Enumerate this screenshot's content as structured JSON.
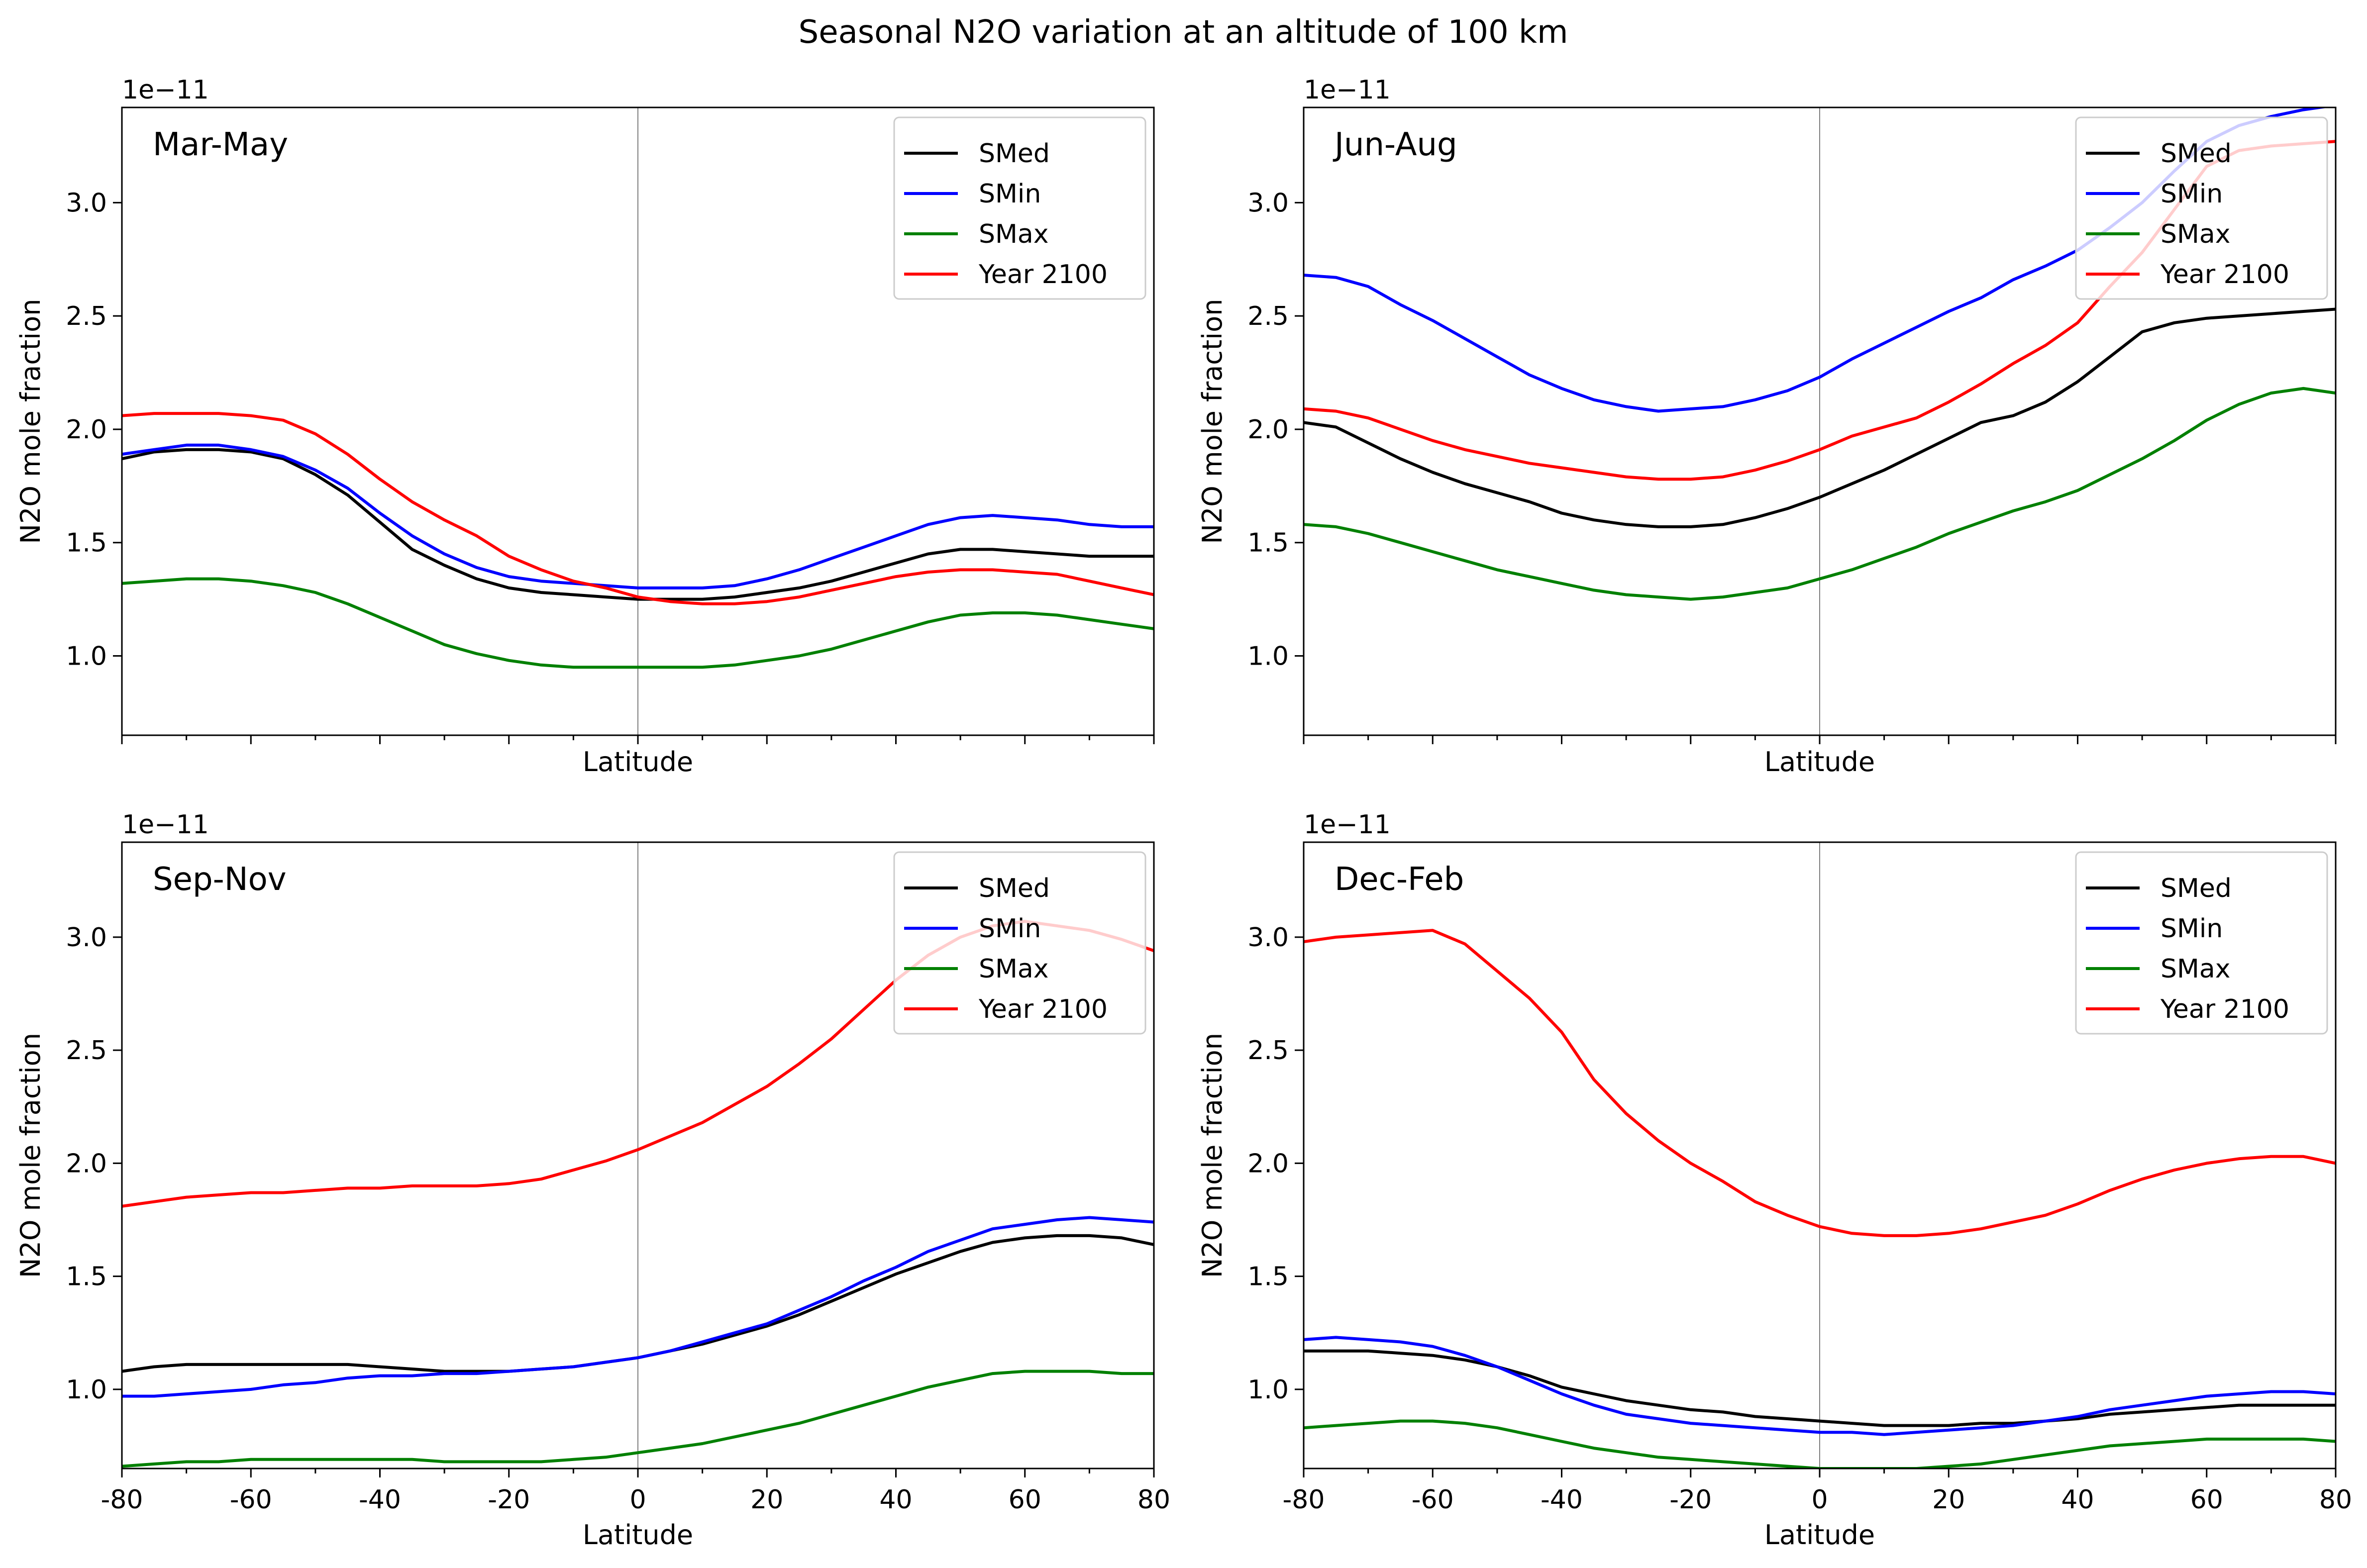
{
  "figure": {
    "title": "Seasonal N2O variation at an altitude of 100 km"
  },
  "chart_data": [
    {
      "type": "line",
      "panel_label": "Mar-May",
      "xlabel": "Latitude",
      "ylabel": "N2O mole fraction",
      "y_offset_label": "1e−11",
      "xlim": [
        -80,
        80
      ],
      "ylim": [
        0.65,
        3.42
      ],
      "xticks": [
        -80,
        -60,
        -40,
        -20,
        0,
        20,
        40,
        60,
        80
      ],
      "yticks": [
        "1.0",
        "1.5",
        "2.0",
        "2.5",
        "3.0"
      ],
      "show_x_tick_labels": false,
      "vline_x": 0,
      "legend_position": "upper right",
      "x": [
        -80,
        -75,
        -70,
        -65,
        -60,
        -55,
        -50,
        -45,
        -40,
        -35,
        -30,
        -25,
        -20,
        -15,
        -10,
        -5,
        0,
        5,
        10,
        15,
        20,
        25,
        30,
        35,
        40,
        45,
        50,
        55,
        60,
        65,
        70,
        75,
        80
      ],
      "series": [
        {
          "name": "SMed",
          "color": "#000000",
          "values": [
            1.87,
            1.9,
            1.91,
            1.91,
            1.9,
            1.87,
            1.8,
            1.71,
            1.59,
            1.47,
            1.4,
            1.34,
            1.3,
            1.28,
            1.27,
            1.26,
            1.25,
            1.25,
            1.25,
            1.26,
            1.28,
            1.3,
            1.33,
            1.37,
            1.41,
            1.45,
            1.47,
            1.47,
            1.46,
            1.45,
            1.44,
            1.44,
            1.44
          ]
        },
        {
          "name": "SMin",
          "color": "#0000ff",
          "values": [
            1.89,
            1.91,
            1.93,
            1.93,
            1.91,
            1.88,
            1.82,
            1.74,
            1.63,
            1.53,
            1.45,
            1.39,
            1.35,
            1.33,
            1.32,
            1.31,
            1.3,
            1.3,
            1.3,
            1.31,
            1.34,
            1.38,
            1.43,
            1.48,
            1.53,
            1.58,
            1.61,
            1.62,
            1.61,
            1.6,
            1.58,
            1.57,
            1.57
          ]
        },
        {
          "name": "SMax",
          "color": "#008000",
          "values": [
            1.32,
            1.33,
            1.34,
            1.34,
            1.33,
            1.31,
            1.28,
            1.23,
            1.17,
            1.11,
            1.05,
            1.01,
            0.98,
            0.96,
            0.95,
            0.95,
            0.95,
            0.95,
            0.95,
            0.96,
            0.98,
            1.0,
            1.03,
            1.07,
            1.11,
            1.15,
            1.18,
            1.19,
            1.19,
            1.18,
            1.16,
            1.14,
            1.12
          ]
        },
        {
          "name": "Year 2100",
          "color": "#ff0000",
          "values": [
            2.06,
            2.07,
            2.07,
            2.07,
            2.06,
            2.04,
            1.98,
            1.89,
            1.78,
            1.68,
            1.6,
            1.53,
            1.44,
            1.38,
            1.33,
            1.3,
            1.26,
            1.24,
            1.23,
            1.23,
            1.24,
            1.26,
            1.29,
            1.32,
            1.35,
            1.37,
            1.38,
            1.38,
            1.37,
            1.36,
            1.33,
            1.3,
            1.27
          ]
        }
      ]
    },
    {
      "type": "line",
      "panel_label": "Jun-Aug",
      "xlabel": "Latitude",
      "ylabel": "N2O mole fraction",
      "y_offset_label": "1e−11",
      "xlim": [
        -80,
        80
      ],
      "ylim": [
        0.65,
        3.42
      ],
      "xticks": [
        -80,
        -60,
        -40,
        -20,
        0,
        20,
        40,
        60,
        80
      ],
      "yticks": [
        "1.0",
        "1.5",
        "2.0",
        "2.5",
        "3.0"
      ],
      "show_x_tick_labels": false,
      "vline_x": 0,
      "legend_position": "upper right",
      "x": [
        -80,
        -75,
        -70,
        -65,
        -60,
        -55,
        -50,
        -45,
        -40,
        -35,
        -30,
        -25,
        -20,
        -15,
        -10,
        -5,
        0,
        5,
        10,
        15,
        20,
        25,
        30,
        35,
        40,
        45,
        50,
        55,
        60,
        65,
        70,
        75,
        80
      ],
      "series": [
        {
          "name": "SMed",
          "color": "#000000",
          "values": [
            2.03,
            2.01,
            1.94,
            1.87,
            1.81,
            1.76,
            1.72,
            1.68,
            1.63,
            1.6,
            1.58,
            1.57,
            1.57,
            1.58,
            1.61,
            1.65,
            1.7,
            1.76,
            1.82,
            1.89,
            1.96,
            2.03,
            2.06,
            2.12,
            2.21,
            2.32,
            2.43,
            2.47,
            2.49,
            2.5,
            2.51,
            2.52,
            2.53
          ]
        },
        {
          "name": "SMin",
          "color": "#0000ff",
          "values": [
            2.68,
            2.67,
            2.63,
            2.55,
            2.48,
            2.4,
            2.32,
            2.24,
            2.18,
            2.13,
            2.1,
            2.08,
            2.09,
            2.1,
            2.13,
            2.17,
            2.23,
            2.31,
            2.38,
            2.45,
            2.52,
            2.58,
            2.66,
            2.72,
            2.79,
            2.89,
            3.0,
            3.14,
            3.27,
            3.34,
            3.38,
            3.41,
            3.43
          ]
        },
        {
          "name": "SMax",
          "color": "#008000",
          "values": [
            1.58,
            1.57,
            1.54,
            1.5,
            1.46,
            1.42,
            1.38,
            1.35,
            1.32,
            1.29,
            1.27,
            1.26,
            1.25,
            1.26,
            1.28,
            1.3,
            1.34,
            1.38,
            1.43,
            1.48,
            1.54,
            1.59,
            1.64,
            1.68,
            1.73,
            1.8,
            1.87,
            1.95,
            2.04,
            2.11,
            2.16,
            2.18,
            2.16
          ]
        },
        {
          "name": "Year 2100",
          "color": "#ff0000",
          "values": [
            2.09,
            2.08,
            2.05,
            2.0,
            1.95,
            1.91,
            1.88,
            1.85,
            1.83,
            1.81,
            1.79,
            1.78,
            1.78,
            1.79,
            1.82,
            1.86,
            1.91,
            1.97,
            2.01,
            2.05,
            2.12,
            2.2,
            2.29,
            2.37,
            2.47,
            2.63,
            2.78,
            2.97,
            3.16,
            3.23,
            3.25,
            3.26,
            3.27
          ]
        }
      ]
    },
    {
      "type": "line",
      "panel_label": "Sep-Nov",
      "xlabel": "Latitude",
      "ylabel": "N2O mole fraction",
      "y_offset_label": "1e−11",
      "xlim": [
        -80,
        80
      ],
      "ylim": [
        0.65,
        3.42
      ],
      "xticks": [
        -80,
        -60,
        -40,
        -20,
        0,
        20,
        40,
        60,
        80
      ],
      "yticks": [
        "1.0",
        "1.5",
        "2.0",
        "2.5",
        "3.0"
      ],
      "show_x_tick_labels": true,
      "vline_x": 0,
      "legend_position": "upper right",
      "x": [
        -80,
        -75,
        -70,
        -65,
        -60,
        -55,
        -50,
        -45,
        -40,
        -35,
        -30,
        -25,
        -20,
        -15,
        -10,
        -5,
        0,
        5,
        10,
        15,
        20,
        25,
        30,
        35,
        40,
        45,
        50,
        55,
        60,
        65,
        70,
        75,
        80
      ],
      "series": [
        {
          "name": "SMed",
          "color": "#000000",
          "values": [
            1.08,
            1.1,
            1.11,
            1.11,
            1.11,
            1.11,
            1.11,
            1.11,
            1.1,
            1.09,
            1.08,
            1.08,
            1.08,
            1.09,
            1.1,
            1.12,
            1.14,
            1.17,
            1.2,
            1.24,
            1.28,
            1.33,
            1.39,
            1.45,
            1.51,
            1.56,
            1.61,
            1.65,
            1.67,
            1.68,
            1.68,
            1.67,
            1.64
          ]
        },
        {
          "name": "SMin",
          "color": "#0000ff",
          "values": [
            0.97,
            0.97,
            0.98,
            0.99,
            1.0,
            1.02,
            1.03,
            1.05,
            1.06,
            1.06,
            1.07,
            1.07,
            1.08,
            1.09,
            1.1,
            1.12,
            1.14,
            1.17,
            1.21,
            1.25,
            1.29,
            1.35,
            1.41,
            1.48,
            1.54,
            1.61,
            1.66,
            1.71,
            1.73,
            1.75,
            1.76,
            1.75,
            1.74
          ]
        },
        {
          "name": "SMax",
          "color": "#008000",
          "values": [
            0.66,
            0.67,
            0.68,
            0.68,
            0.69,
            0.69,
            0.69,
            0.69,
            0.69,
            0.69,
            0.68,
            0.68,
            0.68,
            0.68,
            0.69,
            0.7,
            0.72,
            0.74,
            0.76,
            0.79,
            0.82,
            0.85,
            0.89,
            0.93,
            0.97,
            1.01,
            1.04,
            1.07,
            1.08,
            1.08,
            1.08,
            1.07,
            1.07
          ]
        },
        {
          "name": "Year 2100",
          "color": "#ff0000",
          "values": [
            1.81,
            1.83,
            1.85,
            1.86,
            1.87,
            1.87,
            1.88,
            1.89,
            1.89,
            1.9,
            1.9,
            1.9,
            1.91,
            1.93,
            1.97,
            2.01,
            2.06,
            2.12,
            2.18,
            2.26,
            2.34,
            2.44,
            2.55,
            2.68,
            2.81,
            2.92,
            3.0,
            3.05,
            3.07,
            3.05,
            3.03,
            2.99,
            2.94
          ]
        }
      ]
    },
    {
      "type": "line",
      "panel_label": "Dec-Feb",
      "xlabel": "Latitude",
      "ylabel": "N2O mole fraction",
      "y_offset_label": "1e−11",
      "xlim": [
        -80,
        80
      ],
      "ylim": [
        0.65,
        3.42
      ],
      "xticks": [
        -80,
        -60,
        -40,
        -20,
        0,
        20,
        40,
        60,
        80
      ],
      "yticks": [
        "1.0",
        "1.5",
        "2.0",
        "2.5",
        "3.0"
      ],
      "show_x_tick_labels": true,
      "vline_x": 0,
      "legend_position": "upper right",
      "x": [
        -80,
        -75,
        -70,
        -65,
        -60,
        -55,
        -50,
        -45,
        -40,
        -35,
        -30,
        -25,
        -20,
        -15,
        -10,
        -5,
        0,
        5,
        10,
        15,
        20,
        25,
        30,
        35,
        40,
        45,
        50,
        55,
        60,
        65,
        70,
        75,
        80
      ],
      "series": [
        {
          "name": "SMed",
          "color": "#000000",
          "values": [
            1.17,
            1.17,
            1.17,
            1.16,
            1.15,
            1.13,
            1.1,
            1.06,
            1.01,
            0.98,
            0.95,
            0.93,
            0.91,
            0.9,
            0.88,
            0.87,
            0.86,
            0.85,
            0.84,
            0.84,
            0.84,
            0.85,
            0.85,
            0.86,
            0.87,
            0.89,
            0.9,
            0.91,
            0.92,
            0.93,
            0.93,
            0.93,
            0.93
          ]
        },
        {
          "name": "SMin",
          "color": "#0000ff",
          "values": [
            1.22,
            1.23,
            1.22,
            1.21,
            1.19,
            1.15,
            1.1,
            1.04,
            0.98,
            0.93,
            0.89,
            0.87,
            0.85,
            0.84,
            0.83,
            0.82,
            0.81,
            0.81,
            0.8,
            0.81,
            0.82,
            0.83,
            0.84,
            0.86,
            0.88,
            0.91,
            0.93,
            0.95,
            0.97,
            0.98,
            0.99,
            0.99,
            0.98
          ]
        },
        {
          "name": "SMax",
          "color": "#008000",
          "values": [
            0.83,
            0.84,
            0.85,
            0.86,
            0.86,
            0.85,
            0.83,
            0.8,
            0.77,
            0.74,
            0.72,
            0.7,
            0.69,
            0.68,
            0.67,
            0.66,
            0.65,
            0.65,
            0.65,
            0.65,
            0.66,
            0.67,
            0.69,
            0.71,
            0.73,
            0.75,
            0.76,
            0.77,
            0.78,
            0.78,
            0.78,
            0.78,
            0.77
          ]
        },
        {
          "name": "Year 2100",
          "color": "#ff0000",
          "values": [
            2.98,
            3.0,
            3.01,
            3.02,
            3.03,
            2.97,
            2.85,
            2.73,
            2.58,
            2.37,
            2.22,
            2.1,
            2.0,
            1.92,
            1.83,
            1.77,
            1.72,
            1.69,
            1.68,
            1.68,
            1.69,
            1.71,
            1.74,
            1.77,
            1.82,
            1.88,
            1.93,
            1.97,
            2.0,
            2.02,
            2.03,
            2.03,
            2.0
          ]
        }
      ]
    }
  ]
}
